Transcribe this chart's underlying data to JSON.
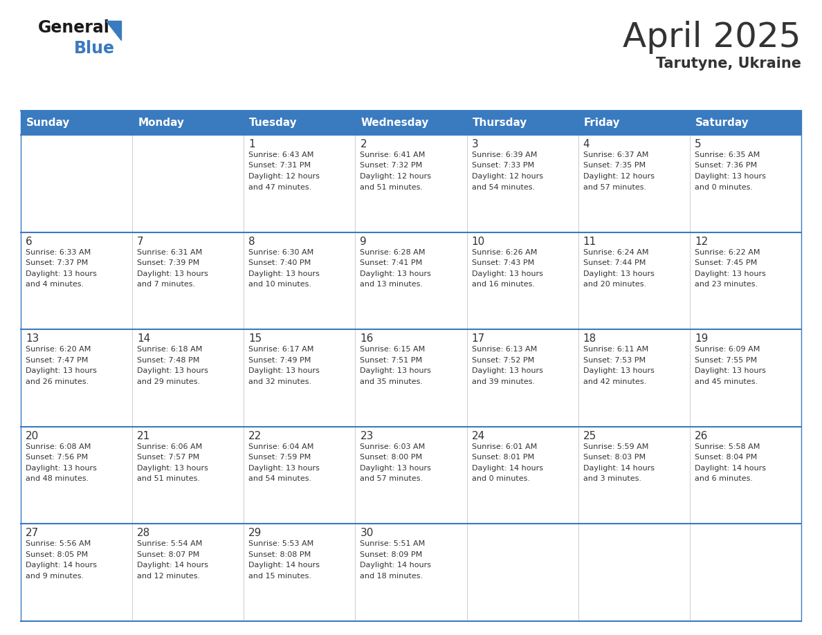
{
  "title": "April 2025",
  "subtitle": "Tarutyne, Ukraine",
  "header_color": "#3a7abf",
  "header_text_color": "#ffffff",
  "cell_bg_color": "#ffffff",
  "border_color": "#3a7abf",
  "text_color": "#333333",
  "days_of_week": [
    "Sunday",
    "Monday",
    "Tuesday",
    "Wednesday",
    "Thursday",
    "Friday",
    "Saturday"
  ],
  "weeks": [
    [
      {
        "day": null,
        "info": null
      },
      {
        "day": null,
        "info": null
      },
      {
        "day": 1,
        "info": "Sunrise: 6:43 AM\nSunset: 7:31 PM\nDaylight: 12 hours\nand 47 minutes."
      },
      {
        "day": 2,
        "info": "Sunrise: 6:41 AM\nSunset: 7:32 PM\nDaylight: 12 hours\nand 51 minutes."
      },
      {
        "day": 3,
        "info": "Sunrise: 6:39 AM\nSunset: 7:33 PM\nDaylight: 12 hours\nand 54 minutes."
      },
      {
        "day": 4,
        "info": "Sunrise: 6:37 AM\nSunset: 7:35 PM\nDaylight: 12 hours\nand 57 minutes."
      },
      {
        "day": 5,
        "info": "Sunrise: 6:35 AM\nSunset: 7:36 PM\nDaylight: 13 hours\nand 0 minutes."
      }
    ],
    [
      {
        "day": 6,
        "info": "Sunrise: 6:33 AM\nSunset: 7:37 PM\nDaylight: 13 hours\nand 4 minutes."
      },
      {
        "day": 7,
        "info": "Sunrise: 6:31 AM\nSunset: 7:39 PM\nDaylight: 13 hours\nand 7 minutes."
      },
      {
        "day": 8,
        "info": "Sunrise: 6:30 AM\nSunset: 7:40 PM\nDaylight: 13 hours\nand 10 minutes."
      },
      {
        "day": 9,
        "info": "Sunrise: 6:28 AM\nSunset: 7:41 PM\nDaylight: 13 hours\nand 13 minutes."
      },
      {
        "day": 10,
        "info": "Sunrise: 6:26 AM\nSunset: 7:43 PM\nDaylight: 13 hours\nand 16 minutes."
      },
      {
        "day": 11,
        "info": "Sunrise: 6:24 AM\nSunset: 7:44 PM\nDaylight: 13 hours\nand 20 minutes."
      },
      {
        "day": 12,
        "info": "Sunrise: 6:22 AM\nSunset: 7:45 PM\nDaylight: 13 hours\nand 23 minutes."
      }
    ],
    [
      {
        "day": 13,
        "info": "Sunrise: 6:20 AM\nSunset: 7:47 PM\nDaylight: 13 hours\nand 26 minutes."
      },
      {
        "day": 14,
        "info": "Sunrise: 6:18 AM\nSunset: 7:48 PM\nDaylight: 13 hours\nand 29 minutes."
      },
      {
        "day": 15,
        "info": "Sunrise: 6:17 AM\nSunset: 7:49 PM\nDaylight: 13 hours\nand 32 minutes."
      },
      {
        "day": 16,
        "info": "Sunrise: 6:15 AM\nSunset: 7:51 PM\nDaylight: 13 hours\nand 35 minutes."
      },
      {
        "day": 17,
        "info": "Sunrise: 6:13 AM\nSunset: 7:52 PM\nDaylight: 13 hours\nand 39 minutes."
      },
      {
        "day": 18,
        "info": "Sunrise: 6:11 AM\nSunset: 7:53 PM\nDaylight: 13 hours\nand 42 minutes."
      },
      {
        "day": 19,
        "info": "Sunrise: 6:09 AM\nSunset: 7:55 PM\nDaylight: 13 hours\nand 45 minutes."
      }
    ],
    [
      {
        "day": 20,
        "info": "Sunrise: 6:08 AM\nSunset: 7:56 PM\nDaylight: 13 hours\nand 48 minutes."
      },
      {
        "day": 21,
        "info": "Sunrise: 6:06 AM\nSunset: 7:57 PM\nDaylight: 13 hours\nand 51 minutes."
      },
      {
        "day": 22,
        "info": "Sunrise: 6:04 AM\nSunset: 7:59 PM\nDaylight: 13 hours\nand 54 minutes."
      },
      {
        "day": 23,
        "info": "Sunrise: 6:03 AM\nSunset: 8:00 PM\nDaylight: 13 hours\nand 57 minutes."
      },
      {
        "day": 24,
        "info": "Sunrise: 6:01 AM\nSunset: 8:01 PM\nDaylight: 14 hours\nand 0 minutes."
      },
      {
        "day": 25,
        "info": "Sunrise: 5:59 AM\nSunset: 8:03 PM\nDaylight: 14 hours\nand 3 minutes."
      },
      {
        "day": 26,
        "info": "Sunrise: 5:58 AM\nSunset: 8:04 PM\nDaylight: 14 hours\nand 6 minutes."
      }
    ],
    [
      {
        "day": 27,
        "info": "Sunrise: 5:56 AM\nSunset: 8:05 PM\nDaylight: 14 hours\nand 9 minutes."
      },
      {
        "day": 28,
        "info": "Sunrise: 5:54 AM\nSunset: 8:07 PM\nDaylight: 14 hours\nand 12 minutes."
      },
      {
        "day": 29,
        "info": "Sunrise: 5:53 AM\nSunset: 8:08 PM\nDaylight: 14 hours\nand 15 minutes."
      },
      {
        "day": 30,
        "info": "Sunrise: 5:51 AM\nSunset: 8:09 PM\nDaylight: 14 hours\nand 18 minutes."
      },
      {
        "day": null,
        "info": null
      },
      {
        "day": null,
        "info": null
      },
      {
        "day": null,
        "info": null
      }
    ]
  ],
  "logo_general_color": "#1a1a1a",
  "logo_blue_color": "#3a7abf",
  "title_fontsize": 36,
  "subtitle_fontsize": 15,
  "day_header_fontsize": 11,
  "day_num_fontsize": 11,
  "cell_text_fontsize": 8
}
